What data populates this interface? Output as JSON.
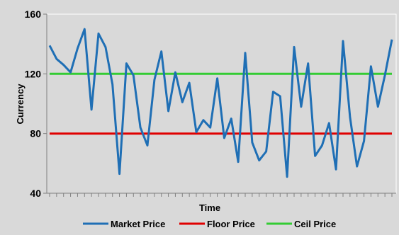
{
  "chart_data": {
    "type": "line",
    "title": "",
    "xlabel": "Time",
    "ylabel": "Currency",
    "ylim": [
      40,
      160
    ],
    "yticks": [
      40,
      80,
      120,
      160
    ],
    "grid": false,
    "legend_position": "bottom",
    "x": [
      1,
      2,
      3,
      4,
      5,
      6,
      7,
      8,
      9,
      10,
      11,
      12,
      13,
      14,
      15,
      16,
      17,
      18,
      19,
      20,
      21,
      22,
      23,
      24,
      25,
      26,
      27,
      28,
      29,
      30,
      31,
      32,
      33,
      34,
      35,
      36,
      37,
      38,
      39,
      40,
      41,
      42,
      43,
      44,
      45,
      46,
      47,
      48,
      49,
      50
    ],
    "series": [
      {
        "name": "Market Price",
        "color": "#1f6fb5",
        "values": [
          139,
          130,
          126,
          121,
          137,
          150,
          96,
          147,
          138,
          113,
          53,
          127,
          119,
          84,
          72,
          116,
          135,
          95,
          121,
          101,
          114,
          81,
          89,
          84,
          117,
          77,
          90,
          61,
          134,
          74,
          62,
          68,
          108,
          105,
          51,
          138,
          98,
          127,
          65,
          72,
          87,
          56,
          142,
          91,
          58,
          75,
          125,
          98,
          119,
          143
        ]
      },
      {
        "name": "Floor Price",
        "color": "#e00000",
        "values": [
          80,
          80,
          80,
          80,
          80,
          80,
          80,
          80,
          80,
          80,
          80,
          80,
          80,
          80,
          80,
          80,
          80,
          80,
          80,
          80,
          80,
          80,
          80,
          80,
          80,
          80,
          80,
          80,
          80,
          80,
          80,
          80,
          80,
          80,
          80,
          80,
          80,
          80,
          80,
          80,
          80,
          80,
          80,
          80,
          80,
          80,
          80,
          80,
          80,
          80
        ]
      },
      {
        "name": "Ceil Price",
        "color": "#33cc33",
        "values": [
          120,
          120,
          120,
          120,
          120,
          120,
          120,
          120,
          120,
          120,
          120,
          120,
          120,
          120,
          120,
          120,
          120,
          120,
          120,
          120,
          120,
          120,
          120,
          120,
          120,
          120,
          120,
          120,
          120,
          120,
          120,
          120,
          120,
          120,
          120,
          120,
          120,
          120,
          120,
          120,
          120,
          120,
          120,
          120,
          120,
          120,
          120,
          120,
          120,
          120
        ]
      }
    ]
  }
}
